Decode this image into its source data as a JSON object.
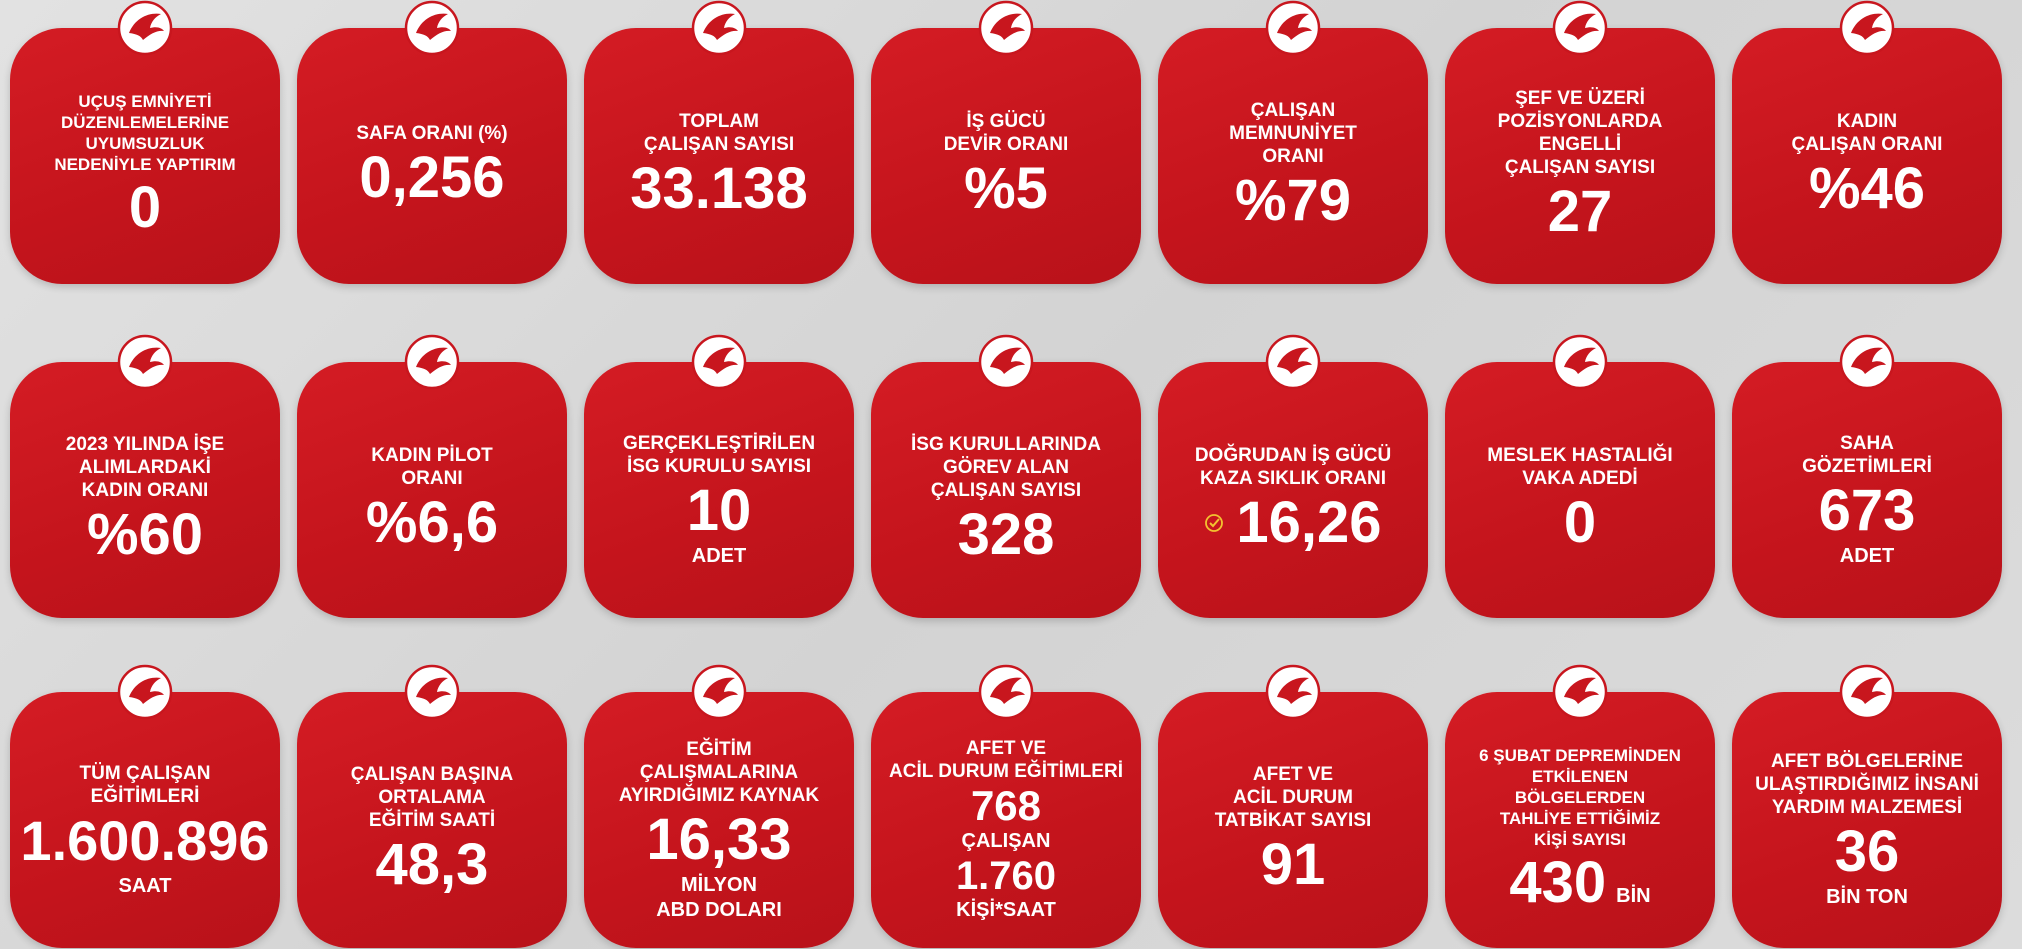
{
  "cards": [
    {
      "title": [
        "UÇUŞ EMNİYETİ",
        "DÜZENLEMELERİNE",
        "UYUMSUZLUK",
        "NEDENİYLE YAPTIRIM"
      ],
      "value": "0"
    },
    {
      "title": [
        "SAFA ORANI (%)"
      ],
      "value": "0,256"
    },
    {
      "title": [
        "TOPLAM",
        "ÇALIŞAN SAYISI"
      ],
      "value": "33.138"
    },
    {
      "title": [
        "İŞ GÜCÜ",
        "DEVİR ORANI"
      ],
      "value": "%5"
    },
    {
      "title": [
        "ÇALIŞAN",
        "MEMNUNİYET",
        "ORANI"
      ],
      "value": "%79"
    },
    {
      "title": [
        "ŞEF VE ÜZERİ",
        "POZİSYONLARDA ENGELLİ",
        "ÇALIŞAN SAYISI"
      ],
      "value": "27"
    },
    {
      "title": [
        "KADIN",
        "ÇALIŞAN ORANI"
      ],
      "value": "%46"
    },
    {
      "title": [
        "2023 YILINDA İŞE",
        "ALIMLARDAKİ",
        "KADIN ORANI"
      ],
      "value": "%60"
    },
    {
      "title": [
        "KADIN PİLOT",
        "ORANI"
      ],
      "value": "%6,6"
    },
    {
      "title": [
        "GERÇEKLEŞTİRİLEN",
        "İSG KURULU SAYISI"
      ],
      "value": "10",
      "unit": [
        "ADET"
      ]
    },
    {
      "title": [
        "İSG KURULLARINDA",
        "GÖREV ALAN",
        "ÇALIŞAN SAYISI"
      ],
      "value": "328"
    },
    {
      "title": [
        "DOĞRUDAN İŞ GÜCÜ",
        "KAZA SIKLIK ORANI"
      ],
      "value": "16,26"
    },
    {
      "title": [
        "MESLEK HASTALIĞI",
        "VAKA ADEDİ"
      ],
      "value": "0"
    },
    {
      "title": [
        "SAHA",
        "GÖZETİMLERİ"
      ],
      "value": "673",
      "unit": [
        "ADET"
      ]
    },
    {
      "title": [
        "TÜM ÇALIŞAN",
        "EĞİTİMLERİ"
      ],
      "value": "1.600.896",
      "unit": [
        "SAAT"
      ]
    },
    {
      "title": [
        "ÇALIŞAN BAŞINA",
        "ORTALAMA",
        "EĞİTİM SAATİ"
      ],
      "value": "48,3"
    },
    {
      "title": [
        "EĞİTİM",
        "ÇALIŞMALARINA",
        "AYIRDIĞIMIZ KAYNAK"
      ],
      "value": "16,33",
      "unit": [
        "MİLYON",
        "ABD DOLARI"
      ]
    },
    {
      "title": [
        "AFET VE",
        "ACİL DURUM EĞİTİMLERİ"
      ],
      "value": "768",
      "unit": [
        "ÇALIŞAN"
      ],
      "value2": "1.760",
      "unit2": [
        "KİŞİ*SAAT"
      ]
    },
    {
      "title": [
        "AFET VE",
        "ACİL DURUM",
        "TATBİKAT SAYISI"
      ],
      "value": "91"
    },
    {
      "title": [
        "6 ŞUBAT DEPREMİNDEN",
        "ETKİLENEN",
        "BÖLGELERDEN",
        "TAHLİYE ETTİĞİMİZ",
        "KİŞİ SAYISI"
      ],
      "value": "430",
      "unit": [
        "BİN"
      ]
    },
    {
      "title": [
        "AFET BÖLGELERİNE",
        "ULAŞTIRDIĞIMIZ İNSANİ",
        "YARDIM MALZEMESİ"
      ],
      "value": "36",
      "unit": [
        "BİN TON"
      ]
    }
  ]
}
